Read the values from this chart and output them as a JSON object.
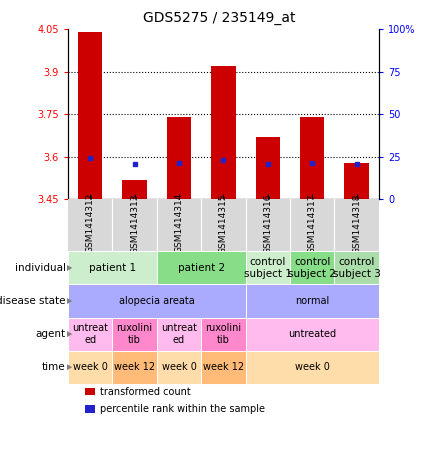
{
  "title": "GDS5275 / 235149_at",
  "samples": [
    "GSM1414312",
    "GSM1414313",
    "GSM1414314",
    "GSM1414315",
    "GSM1414316",
    "GSM1414317",
    "GSM1414318"
  ],
  "bar_heights": [
    4.04,
    3.52,
    3.74,
    3.92,
    3.67,
    3.74,
    3.58
  ],
  "blue_dots": [
    3.595,
    3.573,
    3.578,
    3.588,
    3.573,
    3.578,
    3.573
  ],
  "ylim_left": [
    3.45,
    4.05
  ],
  "ylim_right": [
    0,
    100
  ],
  "yticks_left": [
    3.45,
    3.6,
    3.75,
    3.9,
    4.05
  ],
  "yticks_right": [
    0,
    25,
    50,
    75,
    100
  ],
  "ytick_labels_left": [
    "3.45",
    "3.6",
    "3.75",
    "3.9",
    "4.05"
  ],
  "ytick_labels_right": [
    "0",
    "25",
    "50",
    "75",
    "100%"
  ],
  "hlines": [
    3.6,
    3.75,
    3.9
  ],
  "bar_color": "#cc0000",
  "blue_color": "#2222cc",
  "bg_color": "#ffffff",
  "rows": [
    {
      "key": "individual",
      "label": "individual",
      "cells": [
        {
          "text": "patient 1",
          "span": 2,
          "color": "#cceecc"
        },
        {
          "text": "patient 2",
          "span": 2,
          "color": "#88dd88"
        },
        {
          "text": "control\nsubject 1",
          "span": 1,
          "color": "#cceecc"
        },
        {
          "text": "control\nsubject 2",
          "span": 1,
          "color": "#88dd88"
        },
        {
          "text": "control\nsubject 3",
          "span": 1,
          "color": "#aaddaa"
        }
      ]
    },
    {
      "key": "disease_state",
      "label": "disease state",
      "cells": [
        {
          "text": "alopecia areata",
          "span": 4,
          "color": "#aaaaff"
        },
        {
          "text": "normal",
          "span": 3,
          "color": "#aaaaff"
        }
      ]
    },
    {
      "key": "agent",
      "label": "agent",
      "cells": [
        {
          "text": "untreat\ned",
          "span": 1,
          "color": "#ffbbee"
        },
        {
          "text": "ruxolini\ntib",
          "span": 1,
          "color": "#ff88cc"
        },
        {
          "text": "untreat\ned",
          "span": 1,
          "color": "#ffbbee"
        },
        {
          "text": "ruxolini\ntib",
          "span": 1,
          "color": "#ff88cc"
        },
        {
          "text": "untreated",
          "span": 3,
          "color": "#ffbbee"
        }
      ]
    },
    {
      "key": "time",
      "label": "time",
      "cells": [
        {
          "text": "week 0",
          "span": 1,
          "color": "#ffddaa"
        },
        {
          "text": "week 12",
          "span": 1,
          "color": "#ffbb77"
        },
        {
          "text": "week 0",
          "span": 1,
          "color": "#ffddaa"
        },
        {
          "text": "week 12",
          "span": 1,
          "color": "#ffbb77"
        },
        {
          "text": "week 0",
          "span": 3,
          "color": "#ffddaa"
        }
      ]
    }
  ],
  "legend": [
    {
      "color": "#cc0000",
      "label": "transformed count"
    },
    {
      "color": "#2222cc",
      "label": "percentile rank within the sample"
    }
  ],
  "figsize": [
    4.38,
    4.53
  ],
  "dpi": 100
}
